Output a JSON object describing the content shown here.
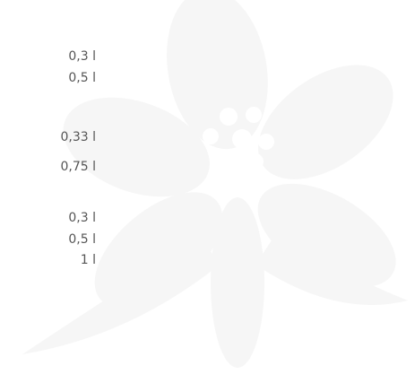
{
  "groups": [
    {
      "items": [
        "0,3 l",
        "0,5 l"
      ]
    },
    {
      "items": [
        "0,33 l",
        "0,75 l"
      ]
    },
    {
      "items": [
        "0,3 l",
        "0,5 l",
        "1 l"
      ]
    }
  ]
}
